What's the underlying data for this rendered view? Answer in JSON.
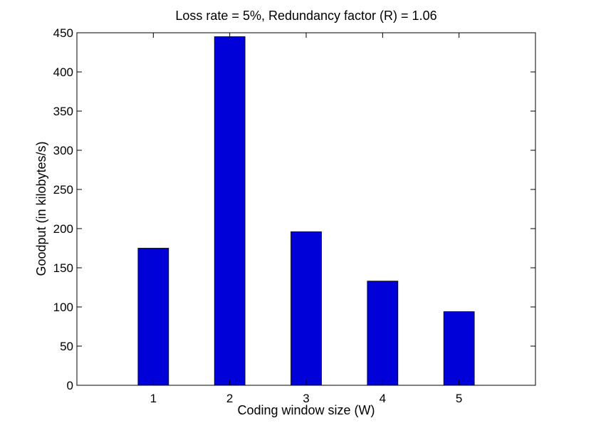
{
  "chart_data": {
    "type": "bar",
    "title": "Loss rate = 5%, Redundancy factor (R) = 1.06",
    "xlabel": "Coding window size (W)",
    "ylabel": "Goodput (in kilobytes/s)",
    "categories": [
      "1",
      "2",
      "3",
      "4",
      "5"
    ],
    "values": [
      175,
      445,
      196,
      133,
      94
    ],
    "ylim": [
      0,
      450
    ],
    "yticks": [
      0,
      50,
      100,
      150,
      200,
      250,
      300,
      350,
      400,
      450
    ],
    "xlim": [
      0,
      6
    ],
    "bar_color": "#0000d8",
    "bar_edge_color": "#000000",
    "grid": false,
    "legend": "none"
  }
}
